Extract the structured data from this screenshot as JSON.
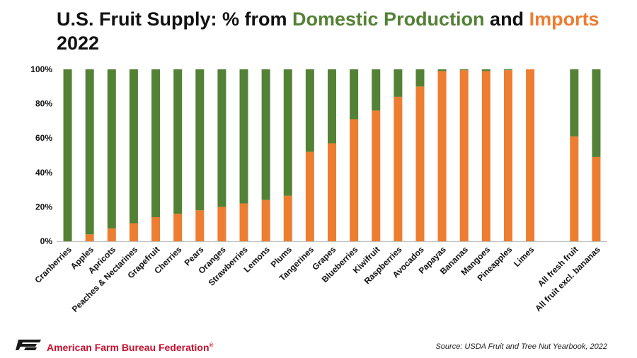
{
  "title": {
    "part1": "U.S. Fruit Supply: % from ",
    "domestic_word": "Domestic Production",
    "part2": " and ",
    "imports_word": "Imports",
    "year": "2022"
  },
  "colors": {
    "domestic": "#538135",
    "imports": "#ED7D31",
    "axis": "#bfbfbf",
    "text": "#111111"
  },
  "footer": {
    "org": "American Farm Bureau Federation",
    "org_mark": "®",
    "source": "Source: USDA Fruit and Tree Nut Yearbook, 2022"
  },
  "chart_data": {
    "type": "bar",
    "stacked": true,
    "categories": [
      "Cranberries",
      "Apples",
      "Apricots",
      "Peaches & Nectarines",
      "Grapefruit",
      "Cherries",
      "Pears",
      "Oranges",
      "Strawberries",
      "Lemons",
      "Plums",
      "Tangerines",
      "Grapes",
      "Blueberries",
      "Kiwifruit",
      "Raspberries",
      "Avocados",
      "Papayas",
      "Bananas",
      "Mangoes",
      "Pineapples",
      "Limes",
      "",
      "All fresh fruit",
      "All fruit excl. bananas"
    ],
    "series": [
      {
        "name": "Imports",
        "values": [
          0,
          4,
          7.5,
          10.5,
          14,
          16,
          18,
          20,
          22,
          24,
          26.5,
          52,
          57,
          71,
          76,
          84,
          90,
          99,
          99.5,
          99,
          99.5,
          100,
          null,
          61,
          49
        ]
      },
      {
        "name": "Domestic Production",
        "values": [
          100,
          96,
          92.5,
          89.5,
          86,
          84,
          82,
          80,
          78,
          76,
          73.5,
          48,
          43,
          29,
          24,
          16,
          10,
          1,
          0.5,
          1,
          0.5,
          0,
          null,
          39,
          51
        ]
      }
    ],
    "ylim": [
      0,
      100
    ],
    "yticks": [
      "0%",
      "20%",
      "40%",
      "60%",
      "80%",
      "100%"
    ],
    "grid": false
  }
}
